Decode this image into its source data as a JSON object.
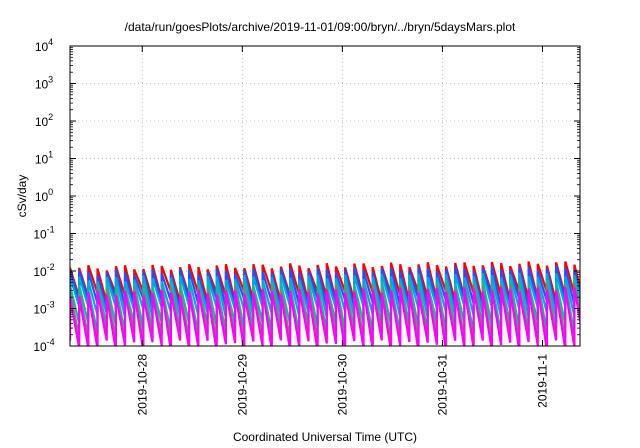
{
  "chart_data": {
    "type": "line",
    "title": "/data/run/goesPlots/archive/2019-11-01/09:00/bryn/../bryn/5daysMars.plot",
    "xlabel": "Coordinated Universal Time (UTC)",
    "ylabel": "cSv/day",
    "yscale": "log",
    "ylim": [
      0.0001,
      10000
    ],
    "yticks": [
      {
        "value": 0.0001,
        "base": "10",
        "exp": "-4"
      },
      {
        "value": 0.001,
        "base": "10",
        "exp": "-3"
      },
      {
        "value": 0.01,
        "base": "10",
        "exp": "-2"
      },
      {
        "value": 0.1,
        "base": "10",
        "exp": "-1"
      },
      {
        "value": 1,
        "base": "10",
        "exp": "0"
      },
      {
        "value": 10,
        "base": "10",
        "exp": "1"
      },
      {
        "value": 100,
        "base": "10",
        "exp": "2"
      },
      {
        "value": 1000,
        "base": "10",
        "exp": "3"
      },
      {
        "value": 10000,
        "base": "10",
        "exp": "4"
      }
    ],
    "xlim": [
      "2019-10-27 06:40",
      "2019-11-01 09:00"
    ],
    "xticks": [
      "2019-10-28",
      "2019-10-29",
      "2019-10-30",
      "2019-10-31",
      "2019-11-1"
    ],
    "xtick_dates": [
      "2019-10-28",
      "2019-10-29",
      "2019-10-30",
      "2019-10-31",
      "2019-11-01"
    ],
    "grid": true,
    "sawtooth_period_hours": 2.2,
    "series": [
      {
        "color": "#ff00ff",
        "peak": 0.0025,
        "trough": 0.0001
      },
      {
        "color": "#808080",
        "peak": 0.003,
        "trough": 0.00016
      },
      {
        "color": "#00c0a0",
        "peak": 0.004,
        "trough": 0.0003
      },
      {
        "color": "#00a8e0",
        "peak": 0.006,
        "trough": 0.0008
      },
      {
        "color": "#2050ff",
        "peak": 0.009,
        "trough": 0.0013
      },
      {
        "color": "#ff0000",
        "peak": 0.012,
        "trough": 0.002
      }
    ]
  }
}
